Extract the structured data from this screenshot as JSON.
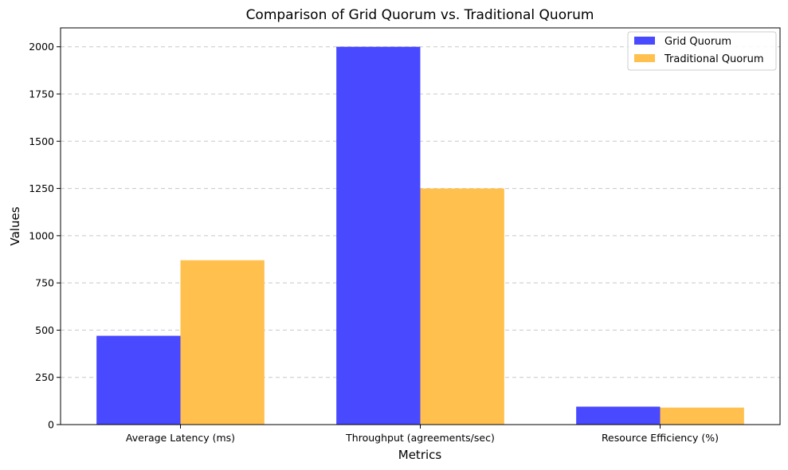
{
  "chart_data": {
    "type": "bar",
    "title": "Comparison of Grid Quorum vs. Traditional Quorum",
    "xlabel": "Metrics",
    "ylabel": "Values",
    "categories": [
      "Average Latency (ms)",
      "Throughput (agreements/sec)",
      "Resource Efficiency (%)"
    ],
    "series": [
      {
        "name": "Grid Quorum",
        "values": [
          470,
          2000,
          95
        ],
        "color": "#4949ff"
      },
      {
        "name": "Traditional Quorum",
        "values": [
          870,
          1250,
          90
        ],
        "color": "#ffc04d"
      }
    ],
    "ylim": [
      0,
      2100
    ],
    "yticks": [
      0,
      250,
      500,
      750,
      1000,
      1250,
      1500,
      1750,
      2000
    ],
    "grid": "y-dashed",
    "legend_position": "top-right"
  }
}
